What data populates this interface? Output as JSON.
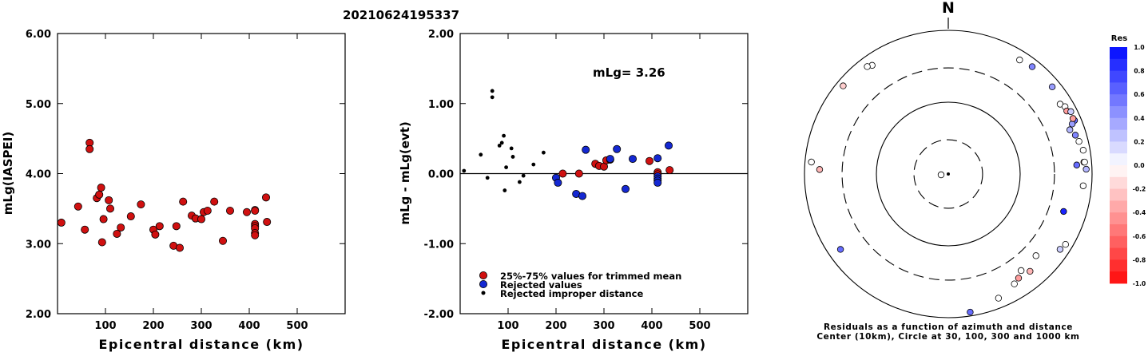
{
  "figure_title": "20210624195337",
  "colors": {
    "accepted": "#d01010",
    "rejected": "#1428d2",
    "improper": "#000000"
  },
  "chart_data": [
    {
      "type": "scatter",
      "title": "",
      "xlabel": "Epicentral distance (km)",
      "ylabel": "mLg(IASPEI)",
      "xlim": [
        0,
        600
      ],
      "ylim": [
        2.0,
        6.0
      ],
      "xticks": [
        "100",
        "200",
        "300",
        "400",
        "500"
      ],
      "yticks": [
        "2.00",
        "3.00",
        "4.00",
        "5.00",
        "6.00"
      ],
      "grid": false,
      "series": [
        {
          "marker": "accepted",
          "points": [
            [
              8,
              3.3
            ],
            [
              43,
              3.53
            ],
            [
              57,
              3.2
            ],
            [
              67,
              4.44
            ],
            [
              67,
              4.35
            ],
            [
              82,
              3.65
            ],
            [
              87,
              3.7
            ],
            [
              91,
              3.8
            ],
            [
              93,
              3.02
            ],
            [
              96,
              3.35
            ],
            [
              107,
              3.62
            ],
            [
              110,
              3.5
            ],
            [
              124,
              3.14
            ],
            [
              132,
              3.23
            ],
            [
              153,
              3.39
            ],
            [
              174,
              3.56
            ],
            [
              200,
              3.2
            ],
            [
              204,
              3.13
            ],
            [
              213,
              3.25
            ],
            [
              242,
              2.97
            ],
            [
              248,
              3.25
            ],
            [
              255,
              2.94
            ],
            [
              262,
              3.6
            ],
            [
              280,
              3.4
            ],
            [
              288,
              3.36
            ],
            [
              300,
              3.35
            ],
            [
              305,
              3.45
            ],
            [
              313,
              3.47
            ],
            [
              327,
              3.6
            ],
            [
              345,
              3.04
            ],
            [
              360,
              3.47
            ],
            [
              395,
              3.45
            ],
            [
              412,
              3.48
            ],
            [
              412,
              3.47
            ],
            [
              412,
              3.28
            ],
            [
              412,
              3.25
            ],
            [
              412,
              3.22
            ],
            [
              412,
              3.15
            ],
            [
              412,
              3.12
            ],
            [
              435,
              3.66
            ],
            [
              437,
              3.31
            ]
          ]
        }
      ]
    },
    {
      "type": "scatter",
      "title": "",
      "xlabel": "Epicentral distance (km)",
      "ylabel": "mLg - mLg(evt)",
      "annotation": "mLg= 3.26",
      "xlim": [
        0,
        600
      ],
      "ylim": [
        -2.0,
        2.0
      ],
      "xticks": [
        "100",
        "200",
        "300",
        "400",
        "500"
      ],
      "yticks": [
        "-2.00",
        "-1.00",
        "0.00",
        "1.00",
        "2.00"
      ],
      "zero_line": true,
      "grid": false,
      "legend": [
        "25%-75% values for trimmed mean",
        "Rejected values",
        "Rejected improper distance"
      ],
      "legend_position": "bottom-left",
      "series": [
        {
          "name": "25%-75% values for trimmed mean",
          "marker": "accepted",
          "points": [
            [
              214,
              0.0
            ],
            [
              248,
              0.0
            ],
            [
              282,
              0.14
            ],
            [
              290,
              0.11
            ],
            [
              300,
              0.1
            ],
            [
              305,
              0.19
            ],
            [
              313,
              0.2
            ],
            [
              395,
              0.18
            ],
            [
              412,
              0.02
            ],
            [
              412,
              -0.01
            ],
            [
              437,
              0.05
            ]
          ]
        },
        {
          "name": "Rejected values",
          "marker": "rejected",
          "points": [
            [
              200,
              -0.06
            ],
            [
              204,
              -0.13
            ],
            [
              242,
              -0.29
            ],
            [
              255,
              -0.32
            ],
            [
              262,
              0.34
            ],
            [
              313,
              0.21
            ],
            [
              327,
              0.35
            ],
            [
              345,
              -0.22
            ],
            [
              360,
              0.21
            ],
            [
              412,
              0.22
            ],
            [
              412,
              -0.04
            ],
            [
              412,
              -0.07
            ],
            [
              412,
              -0.1
            ],
            [
              412,
              -0.13
            ],
            [
              435,
              0.4
            ]
          ]
        },
        {
          "name": "Rejected improper distance",
          "marker": "improper",
          "points": [
            [
              8,
              0.04
            ],
            [
              43,
              0.27
            ],
            [
              57,
              -0.06
            ],
            [
              67,
              1.18
            ],
            [
              67,
              1.09
            ],
            [
              82,
              0.4
            ],
            [
              87,
              0.44
            ],
            [
              91,
              0.54
            ],
            [
              93,
              -0.24
            ],
            [
              96,
              0.09
            ],
            [
              107,
              0.36
            ],
            [
              110,
              0.24
            ],
            [
              124,
              -0.12
            ],
            [
              132,
              -0.03
            ],
            [
              153,
              0.13
            ],
            [
              174,
              0.3
            ]
          ]
        }
      ]
    },
    {
      "type": "scatter",
      "subtype": "polar",
      "north_label": "N",
      "caption_line1": "Residuals as a function of azimuth and distance",
      "caption_line2": "Center (10km), Circle at 30, 100, 300 and 1000 km",
      "rings_km": [
        30,
        100,
        300,
        1000
      ],
      "ring_styles": [
        "dashed",
        "solid",
        "dashed",
        "solid"
      ],
      "colorbar": {
        "label": "Res",
        "ticks": [
          "1.0",
          "0.8",
          "0.6",
          "0.4",
          "0.2",
          "0.0",
          "-0.2",
          "-0.4",
          "-0.6",
          "-0.8",
          "-1.0"
        ],
        "range": [
          -1.0,
          1.0
        ]
      },
      "points_azimuth_deg_distance_km_res": [
        [
          325,
          702,
          0.0
        ],
        [
          323,
          745,
          0.0
        ],
        [
          310,
          810,
          -0.2
        ],
        [
          275,
          815,
          0.0
        ],
        [
          272,
          617,
          -0.3
        ],
        [
          32,
          745,
          0.0
        ],
        [
          38,
          786,
          0.5
        ],
        [
          50,
          771,
          0.4
        ],
        [
          58,
          683,
          0.0
        ],
        [
          60,
          749,
          0.0
        ],
        [
          62,
          737,
          -0.4
        ],
        [
          63,
          818,
          0.2
        ],
        [
          67,
          808,
          0.6
        ],
        [
          68,
          722,
          0.4
        ],
        [
          70,
          630,
          0.3
        ],
        [
          66,
          792,
          -0.4
        ],
        [
          73,
          705,
          0.5
        ],
        [
          76,
          747,
          0.0
        ],
        [
          80,
          805,
          0.0
        ],
        [
          85,
          782,
          -0.5
        ],
        [
          85,
          800,
          0.0
        ],
        [
          88,
          831,
          0.3
        ],
        [
          86,
          618,
          0.6
        ],
        [
          95,
          765,
          0.0
        ],
        [
          108,
          486,
          0.9
        ],
        [
          133,
          465,
          0.0
        ],
        [
          143,
          482,
          0.0
        ],
        [
          146,
          560,
          -0.4
        ],
        [
          140,
          587,
          -0.3
        ],
        [
          149,
          609,
          0.0
        ],
        [
          124,
          751,
          0.2
        ],
        [
          121,
          799,
          0.0
        ],
        [
          158,
          732,
          0.0
        ],
        [
          171,
          885,
          0.6
        ],
        [
          235,
          676,
          0.6
        ]
      ]
    }
  ]
}
